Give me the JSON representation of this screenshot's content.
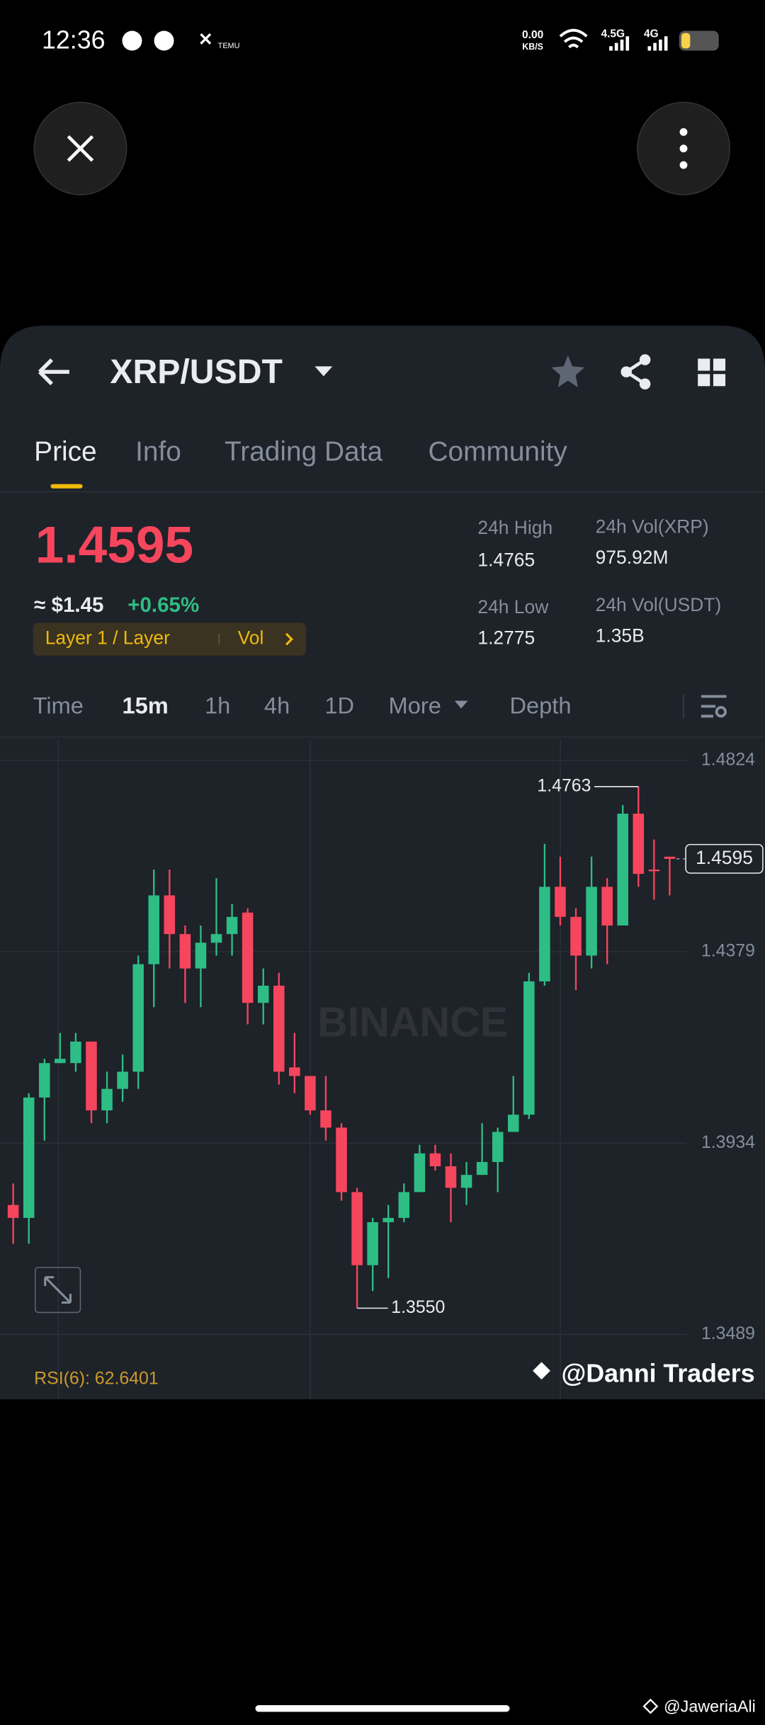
{
  "status_bar": {
    "time": "12:36",
    "app_icon_label": "TEMU",
    "speed": "0.00",
    "speed_unit": "KB/S",
    "network_1": "4.5G",
    "network_2": "4G"
  },
  "header": {
    "pair": "XRP/USDT",
    "tabs": [
      "Price",
      "Info",
      "Trading Data",
      "Community"
    ]
  },
  "price": {
    "last": "1.4595",
    "usd": "≈ $1.45",
    "change": "+0.65%",
    "tag": "Layer 1 / Layer",
    "tag_extra": "Vol"
  },
  "stats": [
    {
      "label": "24h High",
      "value": "1.4765"
    },
    {
      "label": "24h Vol(XRP)",
      "value": "975.92M"
    },
    {
      "label": "24h Low",
      "value": "1.2775"
    },
    {
      "label": "24h Vol(USDT)",
      "value": "1.35B"
    }
  ],
  "intervals": [
    "Time",
    "15m",
    "1h",
    "4h",
    "1D",
    "More",
    "Depth"
  ],
  "chart_data": {
    "type": "candlestick",
    "open": [
      1.379,
      1.376,
      1.404,
      1.412,
      1.412,
      1.417,
      1.401,
      1.406,
      1.41,
      1.435,
      1.451,
      1.442,
      1.434,
      1.44,
      1.442,
      1.447,
      1.426,
      1.43,
      1.411,
      1.409,
      1.401,
      1.397,
      1.382,
      1.365,
      1.375,
      1.376,
      1.382,
      1.391,
      1.388,
      1.383,
      1.386,
      1.389,
      1.396,
      1.4,
      1.431,
      1.453,
      1.446,
      1.437,
      1.453,
      1.444,
      1.47,
      1.457,
      1.46
    ],
    "high": [
      1.384,
      1.405,
      1.413,
      1.419,
      1.419,
      1.417,
      1.41,
      1.414,
      1.437,
      1.457,
      1.457,
      1.444,
      1.444,
      1.455,
      1.449,
      1.448,
      1.434,
      1.433,
      1.419,
      1.409,
      1.409,
      1.398,
      1.383,
      1.376,
      1.379,
      1.384,
      1.393,
      1.393,
      1.391,
      1.389,
      1.398,
      1.397,
      1.409,
      1.433,
      1.463,
      1.46,
      1.448,
      1.46,
      1.455,
      1.472,
      1.4763,
      1.464,
      1.46
    ],
    "low": [
      1.37,
      1.37,
      1.394,
      1.412,
      1.41,
      1.398,
      1.398,
      1.403,
      1.406,
      1.425,
      1.434,
      1.426,
      1.425,
      1.437,
      1.437,
      1.421,
      1.421,
      1.407,
      1.405,
      1.4,
      1.394,
      1.38,
      1.355,
      1.359,
      1.362,
      1.375,
      1.382,
      1.387,
      1.375,
      1.379,
      1.386,
      1.382,
      1.396,
      1.399,
      1.43,
      1.444,
      1.429,
      1.434,
      1.435,
      1.444,
      1.453,
      1.45,
      1.451
    ],
    "close": [
      1.376,
      1.404,
      1.412,
      1.413,
      1.417,
      1.401,
      1.406,
      1.41,
      1.435,
      1.451,
      1.442,
      1.434,
      1.44,
      1.442,
      1.446,
      1.426,
      1.43,
      1.41,
      1.409,
      1.401,
      1.397,
      1.382,
      1.365,
      1.375,
      1.376,
      1.382,
      1.391,
      1.388,
      1.383,
      1.386,
      1.389,
      1.396,
      1.4,
      1.431,
      1.453,
      1.446,
      1.437,
      1.453,
      1.444,
      1.47,
      1.456,
      1.457,
      1.4595
    ],
    "colors": {
      "up": "#2ebd85",
      "down": "#f6465d"
    },
    "ylim": [
      1.3338,
      1.4873
    ],
    "yticks": [
      1.4824,
      1.4379,
      1.3934,
      1.3489
    ],
    "grid": true,
    "last_price": 1.4595,
    "annotations": [
      {
        "value": 1.4763,
        "label": "1.4763"
      },
      {
        "value": 1.355,
        "label": "1.3550"
      }
    ],
    "watermark": "BINANCE",
    "indicator": "RSI(6): 62.6401"
  },
  "overlay": {
    "credit": "@Danni Traders",
    "footer_credit": "@JaweriaAli"
  }
}
